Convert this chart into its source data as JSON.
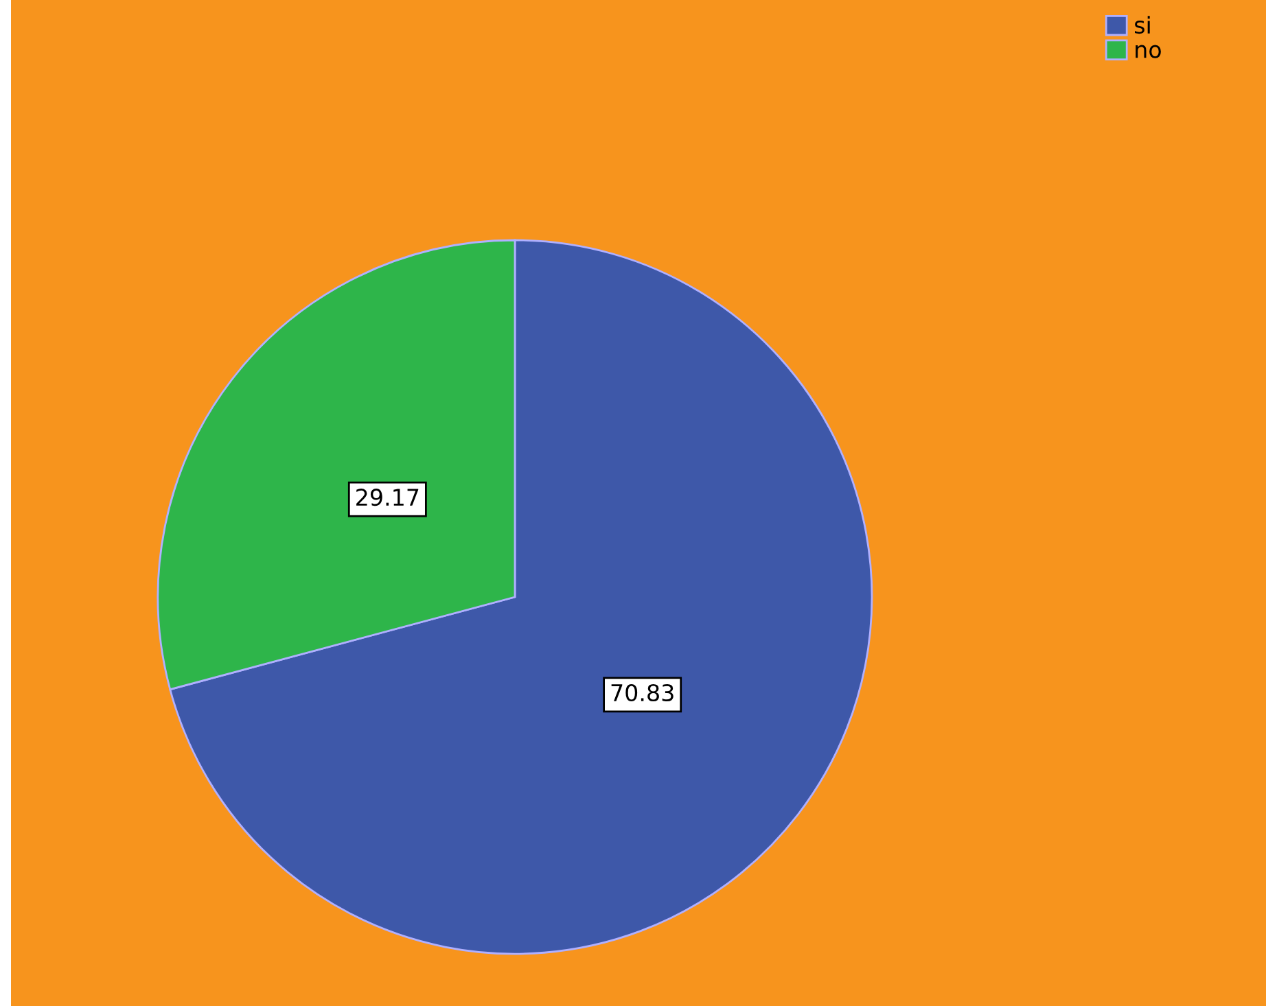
{
  "chart_data": {
    "type": "pie",
    "categories": [
      "si",
      "no"
    ],
    "values": [
      70.83,
      29.17
    ],
    "colors": [
      "#3e58a9",
      "#2eb54a"
    ],
    "data_labels": true,
    "legend": "top right"
  }
}
